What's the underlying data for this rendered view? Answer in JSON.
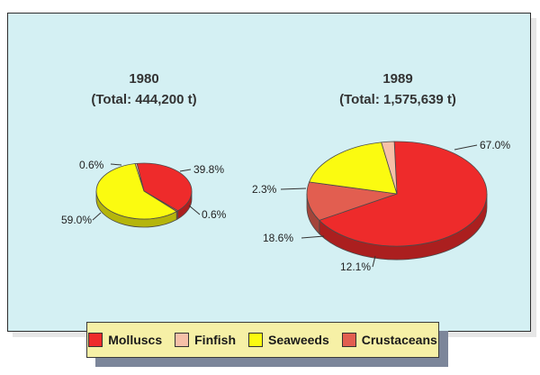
{
  "chart_data": {
    "type": "pie",
    "slice_colors": {
      "Molluscs": "#ee2b2b",
      "Finfish": "#f6c0a8",
      "Seaweeds": "#fbfb10",
      "Crustaceans": "#e25e50"
    },
    "legend": [
      "Molluscs",
      "Finfish",
      "Seaweeds",
      "Crustaceans"
    ],
    "pies": [
      {
        "year": "1980",
        "total_label": "(Total: 444,200 t)",
        "slices": [
          {
            "category": "Molluscs",
            "value": 39.8,
            "label": "39.8%"
          },
          {
            "category": "Crustaceans",
            "value": 0.6,
            "label": "0.6%"
          },
          {
            "category": "Seaweeds",
            "value": 59.0,
            "label": "59.0%"
          },
          {
            "category": "Finfish",
            "value": 0.6,
            "label": "0.6%"
          }
        ]
      },
      {
        "year": "1989",
        "total_label": "(Total: 1,575,639 t)",
        "slices": [
          {
            "category": "Molluscs",
            "value": 67.0,
            "label": "67.0%"
          },
          {
            "category": "Crustaceans",
            "value": 12.1,
            "label": "12.1%"
          },
          {
            "category": "Seaweeds",
            "value": 18.6,
            "label": "18.6%"
          },
          {
            "category": "Finfish",
            "value": 2.3,
            "label": "2.3%"
          }
        ]
      }
    ]
  }
}
